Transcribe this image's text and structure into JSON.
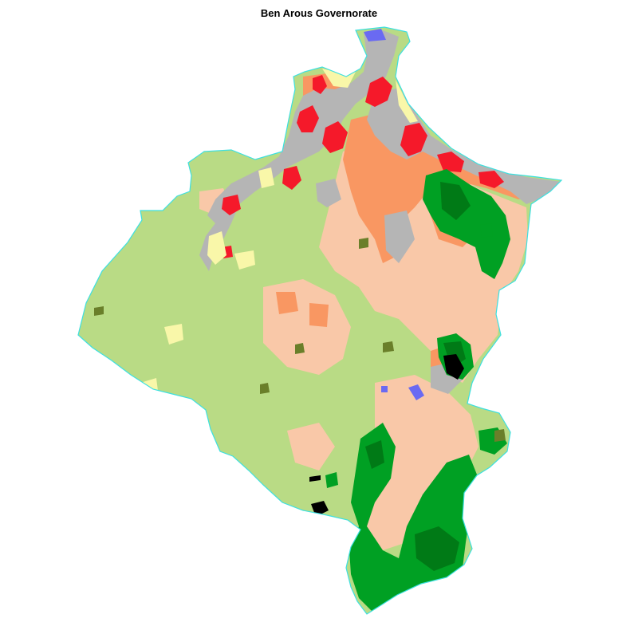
{
  "map": {
    "title": "Ben Arous Governorate",
    "colors": {
      "cropland": "#b9db85",
      "sparse_vegetation": "#f9f7a9",
      "urban_high": "#f5192a",
      "urban_medium": "#f99762",
      "urban_low": "#f9c8a8",
      "built_up": "#b5b5b5",
      "forest": "#00a023",
      "forest_dense": "#007a16",
      "shrubland": "#6a7f2a",
      "water": "#6a6af2",
      "bare_dark": "#000000",
      "coastline": "#3de0e0"
    }
  }
}
